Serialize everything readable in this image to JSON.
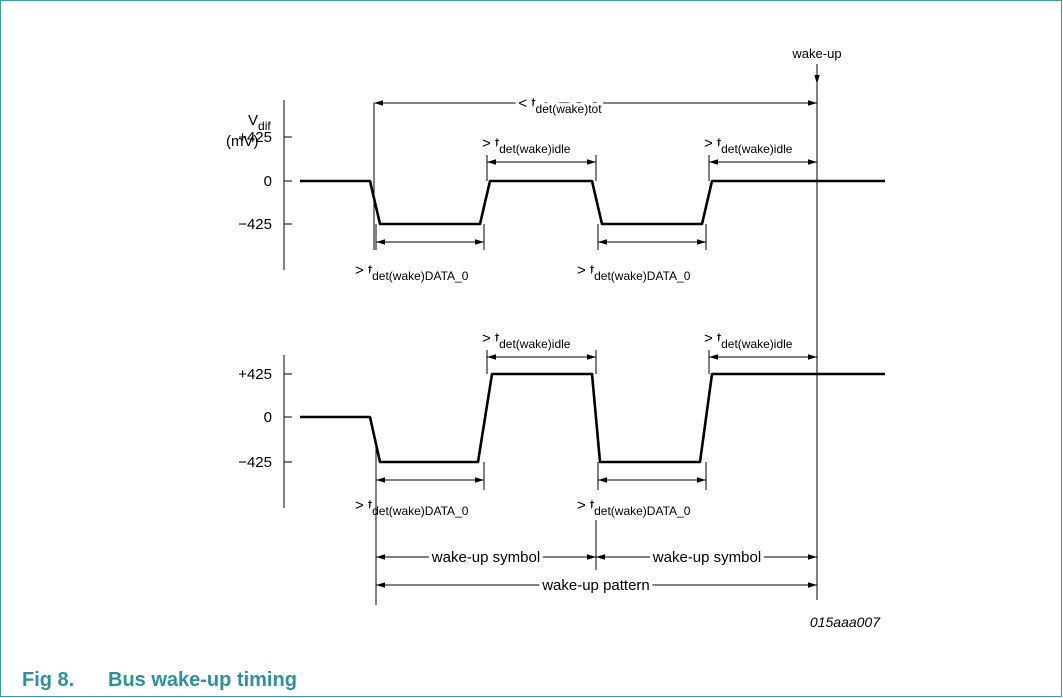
{
  "figure": {
    "number": "Fig 8.",
    "title": "Bus wake-up timing",
    "id": "015aaa007"
  },
  "y_axis": {
    "symbol": "V",
    "sub": "dif",
    "unit": "(mV)"
  },
  "panels": [
    {
      "ticks": [
        "+425",
        "0",
        "−425"
      ]
    },
    {
      "ticks": [
        "+425",
        "0",
        "−425"
      ]
    }
  ],
  "labels": {
    "wake_up": "wake-up",
    "tot": {
      "prefix": "<",
      "symbol": "t",
      "sub": "det(wake)tot"
    },
    "idle": {
      "prefix": ">",
      "symbol": "t",
      "sub": "det(wake)idle"
    },
    "data0": {
      "prefix": ">",
      "symbol": "t",
      "sub": "det(wake)DATA_0"
    },
    "symbol": "wake-up symbol",
    "pattern": "wake-up pattern"
  }
}
